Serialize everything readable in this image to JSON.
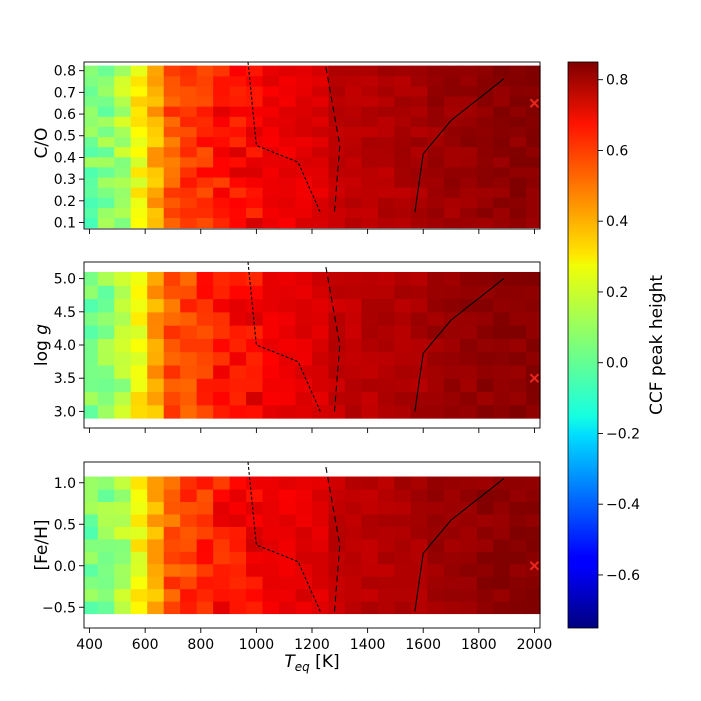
{
  "figure": {
    "xlabel": "T_eq [K]",
    "xlabel_main": "T",
    "xlabel_sub": "eq",
    "xlabel_unit": " [K]",
    "xticks": [
      "400",
      "600",
      "800",
      "1000",
      "1200",
      "1400",
      "1600",
      "1800",
      "2000"
    ],
    "marker_color": "#e8281e"
  },
  "colorbar": {
    "label": "CCF peak height",
    "range": [
      -0.75,
      0.85
    ],
    "ticks": [
      "−0.6",
      "−0.4",
      "−0.2",
      "0.0",
      "0.2",
      "0.4",
      "0.6",
      "0.8"
    ],
    "tick_values": [
      -0.6,
      -0.4,
      -0.2,
      0.0,
      0.2,
      0.4,
      0.6,
      0.8
    ],
    "colormap": "jet"
  },
  "chart_data": [
    {
      "type": "heatmap",
      "ylabel": "C/O",
      "xlim": [
        380,
        2020
      ],
      "ylim": [
        0.07,
        0.84
      ],
      "yticks": [
        "0.1",
        "0.2",
        "0.3",
        "0.4",
        "0.5",
        "0.6",
        "0.7",
        "0.8"
      ],
      "ytick_values": [
        0.1,
        0.2,
        0.3,
        0.4,
        0.5,
        0.6,
        0.7,
        0.8
      ],
      "marker": [
        2000,
        0.65
      ],
      "blank_above": 0.805
    },
    {
      "type": "heatmap",
      "ylabel": "log g",
      "ylabel_main": "log ",
      "ylabel_var": "g",
      "xlim": [
        380,
        2020
      ],
      "ylim": [
        2.75,
        5.25
      ],
      "yticks": [
        "3.0",
        "3.5",
        "4.0",
        "4.5",
        "5.0"
      ],
      "ytick_values": [
        3.0,
        3.5,
        4.0,
        4.5,
        5.0
      ],
      "marker": [
        2000,
        3.5
      ]
    },
    {
      "type": "heatmap",
      "ylabel": "[Fe/H]",
      "xlim": [
        380,
        2020
      ],
      "ylim": [
        -0.75,
        1.25
      ],
      "yticks": [
        "−0.5",
        "0.0",
        "0.5",
        "1.0"
      ],
      "ytick_values": [
        -0.5,
        0.0,
        0.5,
        1.0
      ],
      "marker": [
        2000,
        0.0
      ]
    }
  ]
}
